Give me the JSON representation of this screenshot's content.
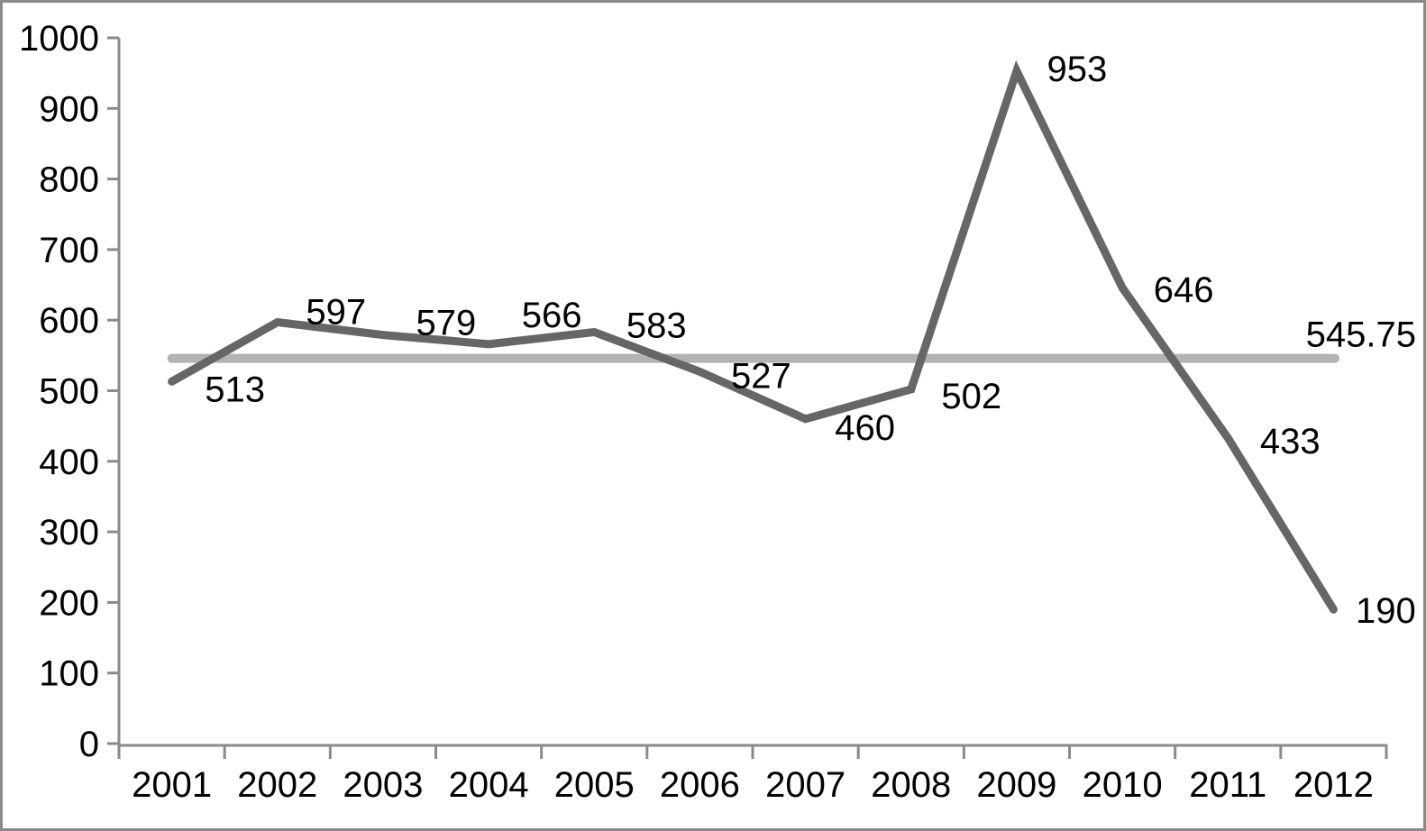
{
  "chart_data": {
    "type": "line",
    "title": "",
    "xlabel": "",
    "ylabel": "",
    "categories": [
      "2001",
      "2002",
      "2003",
      "2004",
      "2005",
      "2006",
      "2007",
      "2008",
      "2009",
      "2010",
      "2011",
      "2012"
    ],
    "series": [
      {
        "name": "annual-values",
        "values": [
          513,
          597,
          579,
          566,
          583,
          527,
          460,
          502,
          953,
          646,
          433,
          190
        ],
        "data_labels": [
          "513",
          "597",
          "579",
          "566",
          "583",
          "527",
          "460",
          "502",
          "953",
          "646",
          "433",
          "190"
        ],
        "color": "#666666"
      },
      {
        "name": "average-reference-line",
        "value": 545.75,
        "label": "545.75",
        "color": "#b3b3b3"
      }
    ],
    "ylim": [
      0,
      1000
    ],
    "ytick_step": 100,
    "ytick_labels": [
      "0",
      "100",
      "200",
      "300",
      "400",
      "500",
      "600",
      "700",
      "800",
      "900",
      "1000"
    ],
    "grid": false,
    "legend": "none",
    "data_labels_visible": true
  },
  "style": {
    "background": "#ffffff",
    "border_color": "#8a8a8a",
    "axis_color": "#8a8a8a",
    "text_color": "#000000"
  }
}
